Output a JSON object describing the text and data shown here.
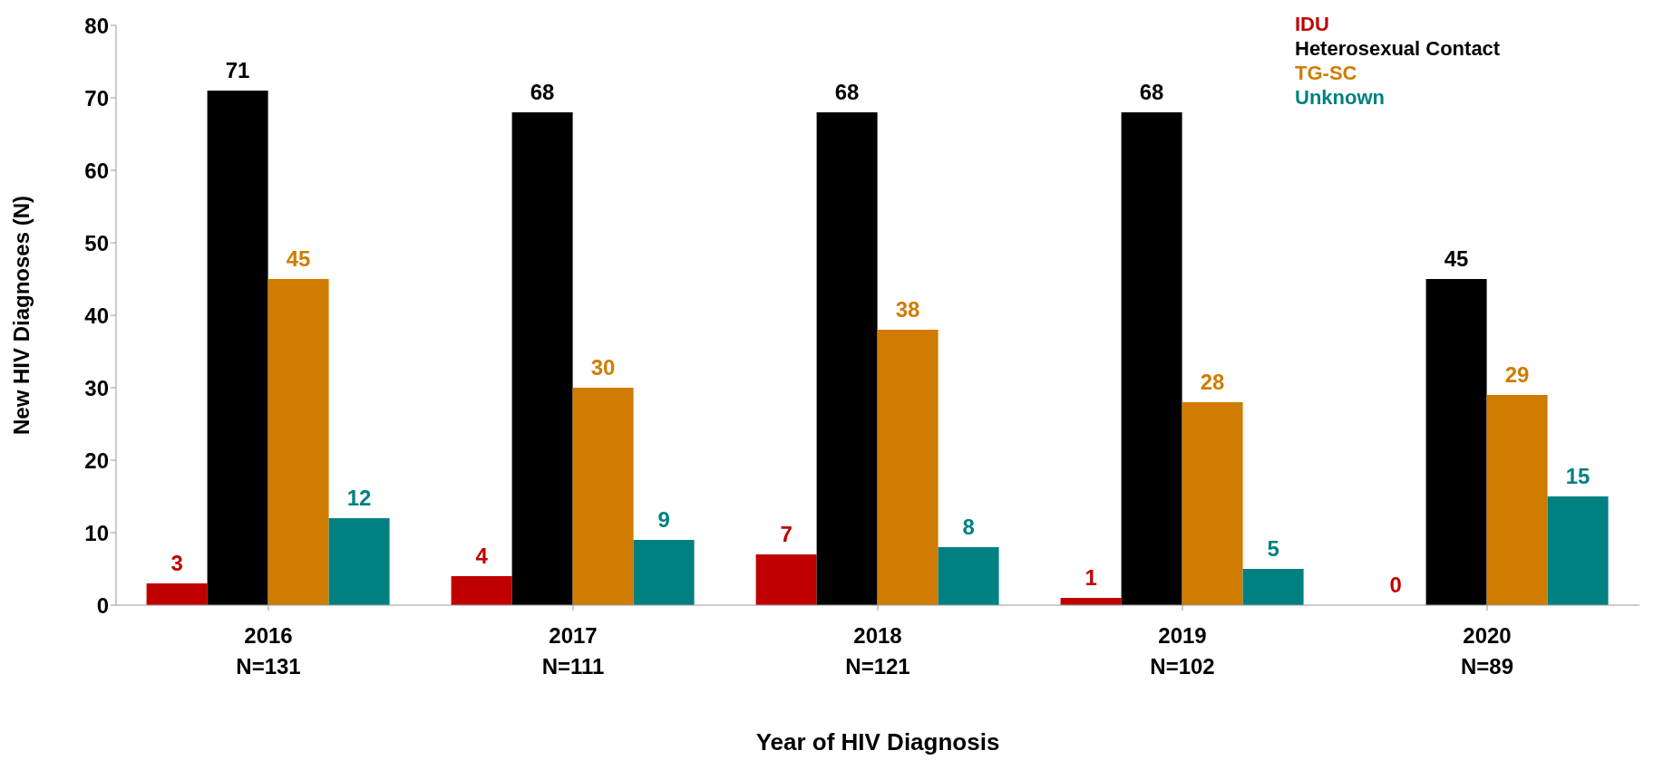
{
  "chart_data": {
    "type": "bar",
    "xlabel": "Year of HIV Diagnosis",
    "ylabel": "New HIV Diagnoses (N)",
    "categories": [
      "2016\nN=131",
      "2017\nN=111",
      "2018\nN=121",
      "2019\nN=102",
      "2020\nN=89"
    ],
    "series": [
      {
        "name": "IDU",
        "color": "#c00000",
        "values": [
          3,
          4,
          7,
          1,
          0
        ]
      },
      {
        "name": "Heterosexual Contact",
        "color": "#000000",
        "values": [
          71,
          68,
          68,
          68,
          45
        ]
      },
      {
        "name": "TG-SC",
        "color": "#d07c00",
        "values": [
          45,
          30,
          38,
          28,
          29
        ]
      },
      {
        "name": "Unknown",
        "color": "#008080",
        "values": [
          12,
          9,
          8,
          5,
          15
        ]
      }
    ],
    "ylim": [
      0,
      80
    ],
    "yticks": [
      0,
      10,
      20,
      30,
      40,
      50,
      60,
      70,
      80
    ],
    "grid": false,
    "legend": "top right",
    "data_labels": true
  }
}
